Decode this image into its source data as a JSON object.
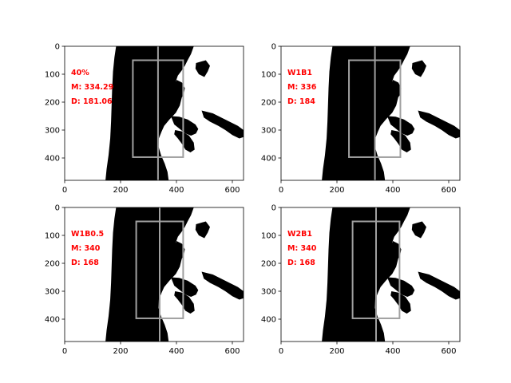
{
  "chart_data": [
    {
      "type": "image-overlay",
      "label_lines": [
        "40%",
        "M: 334.29",
        "D: 181.06"
      ],
      "xlim": [
        0,
        640
      ],
      "ylim": [
        480,
        0
      ],
      "xticks": [
        0,
        200,
        400,
        600
      ],
      "yticks": [
        0,
        100,
        200,
        300,
        400
      ],
      "rect": {
        "x0": 244,
        "y0": 50,
        "x1": 424,
        "y1": 397
      },
      "midline_x": 334
    },
    {
      "type": "image-overlay",
      "label_lines": [
        "W1B1",
        "M: 336",
        "D: 184"
      ],
      "xlim": [
        0,
        640
      ],
      "ylim": [
        480,
        0
      ],
      "xticks": [
        0,
        200,
        400,
        600
      ],
      "yticks": [
        0,
        100,
        200,
        300,
        400
      ],
      "rect": {
        "x0": 243,
        "y0": 50,
        "x1": 427,
        "y1": 397
      },
      "midline_x": 336
    },
    {
      "type": "image-overlay",
      "label_lines": [
        "W1B0.5",
        "M: 340",
        "D: 168"
      ],
      "xlim": [
        0,
        640
      ],
      "ylim": [
        480,
        0
      ],
      "xticks": [
        0,
        200,
        400,
        600
      ],
      "yticks": [
        0,
        100,
        200,
        300,
        400
      ],
      "rect": {
        "x0": 256,
        "y0": 50,
        "x1": 424,
        "y1": 397
      },
      "midline_x": 340
    },
    {
      "type": "image-overlay",
      "label_lines": [
        "W2B1",
        "M: 340",
        "D: 168"
      ],
      "xlim": [
        0,
        640
      ],
      "ylim": [
        480,
        0
      ],
      "xticks": [
        0,
        200,
        400,
        600
      ],
      "yticks": [
        0,
        100,
        200,
        300,
        400
      ],
      "rect": {
        "x0": 256,
        "y0": 50,
        "x1": 424,
        "y1": 397
      },
      "midline_x": 340
    }
  ],
  "colors": {
    "overlay": "#a0a0a0",
    "annotation": "#ff0000",
    "mask": "#000000",
    "background": "#ffffff"
  }
}
